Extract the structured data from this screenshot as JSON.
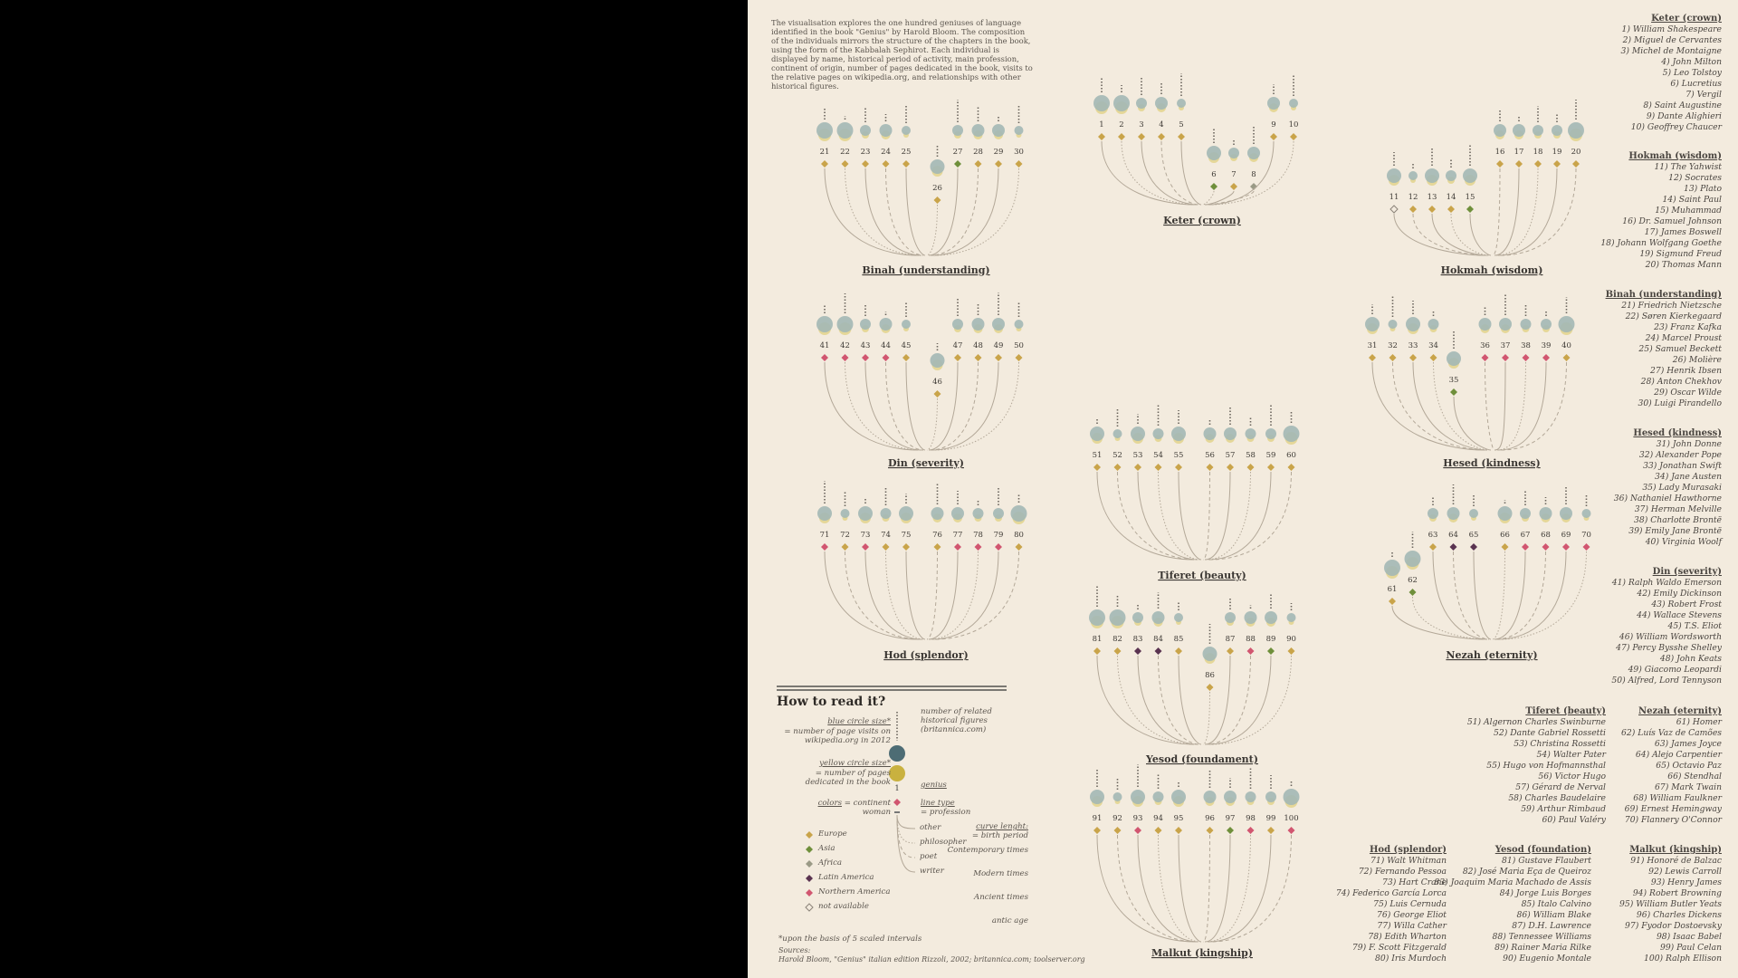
{
  "intro": "The visualisation explores the one hundred geniuses of language identified in the book \"Genius\" by Harold Bloom. The composition of the individuals mirrors the structure of the chapters in the book, using the form of the Kabbalah Sephirot. Each individual is displayed by name, historical period of activity, main profession, continent of origin, number of pages dedicated in the book, visits to the relative pages on wikipedia.org, and relationships with other historical figures.",
  "colors": {
    "background": "#f3ebde",
    "blue": "#a3b8b5",
    "yellow": "#e2d38c",
    "europe": "#c9a44a",
    "asia": "#6f8f3b",
    "africa": "#9a9a86",
    "latin_america": "#5a3350",
    "northern_america": "#d15670",
    "line": "#b3a898"
  },
  "groups": [
    {
      "name": "Keter (crown)",
      "names": [
        "William Shakespeare",
        "Miguel de Cervantes",
        "Michel de Montaigne",
        "John Milton",
        "Leo Tolstoy",
        "Lucretius",
        "Vergil",
        "Saint Augustine",
        "Dante Alighieri",
        "Geoffrey Chaucer"
      ]
    },
    {
      "name": "Hokmah (wisdom)",
      "names": [
        "The Yahwist",
        "Socrates",
        "Plato",
        "Saint Paul",
        "Muhammad",
        "Dr. Samuel Johnson",
        "James Boswell",
        "Johann Wolfgang Goethe",
        "Sigmund Freud",
        "Thomas Mann"
      ]
    },
    {
      "name": "Binah (understanding)",
      "names": [
        "Friedrich Nietzsche",
        "Søren Kierkegaard",
        "Franz Kafka",
        "Marcel Proust",
        "Samuel Beckett",
        "Molière",
        "Henrik Ibsen",
        "Anton Chekhov",
        "Oscar Wilde",
        "Luigi Pirandello"
      ]
    },
    {
      "name": "Hesed (kindness)",
      "names": [
        "John Donne",
        "Alexander Pope",
        "Jonathan Swift",
        "Jane Austen",
        "Lady Murasaki",
        "Nathaniel Hawthorne",
        "Herman Melville",
        "Charlotte Brontë",
        "Emily Jane Brontë",
        "Virginia Woolf"
      ]
    },
    {
      "name": "Din (severity)",
      "names": [
        "Ralph Waldo Emerson",
        "Emily Dickinson",
        "Robert Frost",
        "Wallace Stevens",
        "T.S. Eliot",
        "William Wordsworth",
        "Percy Bysshe Shelley",
        "John Keats",
        "Giacomo Leopardi",
        "Alfred, Lord Tennyson"
      ]
    },
    {
      "name": "Tiferet (beauty)",
      "names": [
        "Algernon Charles Swinburne",
        "Dante Gabriel Rossetti",
        "Christina Rossetti",
        "Walter Pater",
        "Hugo von Hofmannsthal",
        "Victor Hugo",
        "Gérard de Nerval",
        "Charles Baudelaire",
        "Arthur Rimbaud",
        "Paul Valéry"
      ]
    },
    {
      "name": "Nezah (eternity)",
      "names": [
        "Homer",
        "Luís Vaz de Camões",
        "James Joyce",
        "Alejo Carpentier",
        "Octavio Paz",
        "Stendhal",
        "Mark Twain",
        "William Faulkner",
        "Ernest Hemingway",
        "Flannery O'Connor"
      ]
    },
    {
      "name": "Hod (splendor)",
      "names": [
        "Walt Whitman",
        "Fernando Pessoa",
        "Hart Crane",
        "Federico García Lorca",
        "Luis Cernuda",
        "George Eliot",
        "Willa Cather",
        "Edith Wharton",
        "F. Scott Fitzgerald",
        "Iris Murdoch"
      ]
    },
    {
      "name": "Yesod (foundament)",
      "list_name": "Yesod (foundation)",
      "names": [
        "Gustave Flaubert",
        "José Maria Eça de Queiroz",
        "Joaquim Maria Machado de Assis",
        "Jorge Luis Borges",
        "Italo Calvino",
        "William Blake",
        "D.H. Lawrence",
        "Tennessee Williams",
        "Rainer Maria Rilke",
        "Eugenio Montale"
      ]
    },
    {
      "name": "Malkut (kingship)",
      "names": [
        "Honoré de Balzac",
        "Lewis Carroll",
        "Henry James",
        "Robert Browning",
        "William Butler Yeats",
        "Charles Dickens",
        "Fyodor Dostoevsky",
        "Isaac Babel",
        "Paul Celan",
        "Ralph Ellison"
      ]
    }
  ],
  "legend": {
    "title": "How to read it?",
    "blue_size": "blue circle size*",
    "blue_desc": "= number of page visits on wikipedia.org in 2012",
    "related": "number of related historical figures (britannica.com)",
    "yellow_size": "yellow circle size*",
    "yellow_desc": "= number of pages dedicated in the book",
    "genius": "genius",
    "colors_label": "colors",
    "colors_desc": "= continent",
    "woman": "woman",
    "line_type": "line type",
    "line_desc": "= profession",
    "continents": [
      "Europe",
      "Asia",
      "Africa",
      "Latin America",
      "Northern America",
      "not available"
    ],
    "professions": [
      "other",
      "philosopher",
      "poet",
      "writer"
    ],
    "curve": "curve lenght:",
    "curve_desc": "= birth period",
    "periods": [
      "Contemporary times",
      "Modern times",
      "Ancient times",
      "antic age"
    ],
    "footnote": "*upon the basis of 5 scaled intervals",
    "sources_label": "Sources:",
    "sources": "Harold Bloom, \"Genius\" italian edition Rizzoli, 2002; britannica.com; toolserver.org"
  }
}
